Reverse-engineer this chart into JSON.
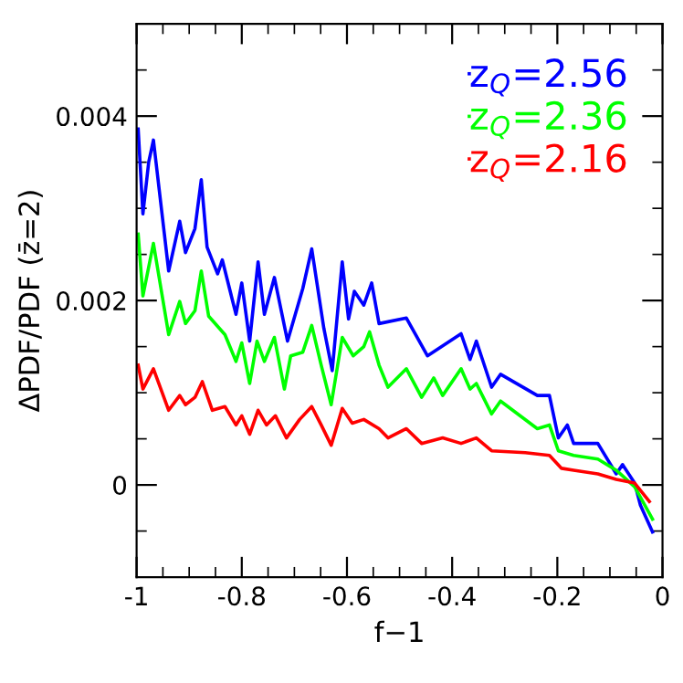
{
  "chart_data": {
    "type": "line",
    "xlabel": "f−1",
    "ylabel": "ΔPDF/PDF (z̄=2)",
    "xlim": [
      -1,
      0
    ],
    "xticks": [
      -1,
      -0.8,
      -0.6,
      -0.4,
      -0.2,
      0
    ],
    "ylim": [
      -0.001,
      0.005
    ],
    "yticks": [
      0,
      0.002,
      0.004
    ],
    "grid": false,
    "legend": "top right",
    "marker": "none",
    "line_style": "solid",
    "series": [
      {
        "name": "z$_{Q}$=2.56",
        "color": "#0000ff",
        "x": [
          -0.997,
          -0.988,
          -0.977,
          -0.968,
          -0.939,
          -0.918,
          -0.907,
          -0.889,
          -0.877,
          -0.866,
          -0.846,
          -0.837,
          -0.811,
          -0.8,
          -0.785,
          -0.769,
          -0.757,
          -0.738,
          -0.713,
          -0.684,
          -0.667,
          -0.644,
          -0.628,
          -0.609,
          -0.597,
          -0.586,
          -0.568,
          -0.553,
          -0.539,
          -0.487,
          -0.447,
          -0.383,
          -0.366,
          -0.354,
          -0.325,
          -0.308,
          -0.238,
          -0.215,
          -0.198,
          -0.181,
          -0.169,
          -0.123,
          -0.088,
          -0.076,
          -0.053,
          -0.042,
          -0.019
        ],
        "values": [
          0.00386,
          0.00294,
          0.0035,
          0.00374,
          0.00232,
          0.00286,
          0.00252,
          0.00278,
          0.00331,
          0.00258,
          0.00229,
          0.00244,
          0.00185,
          0.00219,
          0.00156,
          0.00242,
          0.00185,
          0.00225,
          0.00156,
          0.00213,
          0.00256,
          0.0017,
          0.00124,
          0.00242,
          0.0018,
          0.0021,
          0.00195,
          0.00219,
          0.00175,
          0.00181,
          0.0014,
          0.00164,
          0.00136,
          0.00156,
          0.00106,
          0.0012,
          0.00097,
          0.00097,
          0.00051,
          0.00065,
          0.00045,
          0.00045,
          0.00012,
          0.00022,
          2e-05,
          -0.00022,
          -0.00051
        ]
      },
      {
        "name": "z$_{Q}$=2.36",
        "color": "#00ff00",
        "x": [
          -0.997,
          -0.988,
          -0.968,
          -0.939,
          -0.918,
          -0.907,
          -0.889,
          -0.877,
          -0.863,
          -0.832,
          -0.811,
          -0.8,
          -0.785,
          -0.771,
          -0.757,
          -0.738,
          -0.719,
          -0.707,
          -0.684,
          -0.667,
          -0.649,
          -0.63,
          -0.609,
          -0.588,
          -0.568,
          -0.557,
          -0.539,
          -0.522,
          -0.487,
          -0.458,
          -0.435,
          -0.418,
          -0.383,
          -0.366,
          -0.354,
          -0.325,
          -0.308,
          -0.238,
          -0.215,
          -0.198,
          -0.169,
          -0.123,
          -0.088,
          -0.053,
          -0.019
        ],
        "values": [
          0.00272,
          0.00205,
          0.00262,
          0.00163,
          0.00199,
          0.00175,
          0.00189,
          0.00232,
          0.00183,
          0.00163,
          0.00134,
          0.00154,
          0.0011,
          0.00156,
          0.00134,
          0.0016,
          0.00104,
          0.0014,
          0.00144,
          0.00173,
          0.0013,
          0.00087,
          0.0016,
          0.0014,
          0.0015,
          0.00166,
          0.0013,
          0.00106,
          0.00126,
          0.00095,
          0.00116,
          0.00097,
          0.00126,
          0.00104,
          0.0011,
          0.00077,
          0.00091,
          0.00061,
          0.00065,
          0.00037,
          0.00032,
          0.00028,
          0.00016,
          -2e-05,
          -0.00037
        ]
      },
      {
        "name": "z$_{Q}$=2.16",
        "color": "#ff0000",
        "x": [
          -0.997,
          -0.988,
          -0.968,
          -0.939,
          -0.918,
          -0.907,
          -0.889,
          -0.875,
          -0.856,
          -0.832,
          -0.811,
          -0.8,
          -0.785,
          -0.769,
          -0.753,
          -0.736,
          -0.715,
          -0.69,
          -0.667,
          -0.649,
          -0.63,
          -0.609,
          -0.59,
          -0.568,
          -0.539,
          -0.522,
          -0.487,
          -0.458,
          -0.418,
          -0.383,
          -0.354,
          -0.325,
          -0.261,
          -0.215,
          -0.192,
          -0.169,
          -0.123,
          -0.088,
          -0.053,
          -0.025
        ],
        "values": [
          0.0013,
          0.00104,
          0.00126,
          0.00081,
          0.00097,
          0.00087,
          0.00095,
          0.00112,
          0.00081,
          0.00085,
          0.00065,
          0.00075,
          0.00055,
          0.00081,
          0.00065,
          0.00075,
          0.00051,
          0.00071,
          0.00085,
          0.00065,
          0.00043,
          0.00083,
          0.00067,
          0.00071,
          0.00061,
          0.00051,
          0.00061,
          0.00045,
          0.00051,
          0.00045,
          0.00051,
          0.00037,
          0.00035,
          0.00032,
          0.00018,
          0.00016,
          0.00012,
          6e-05,
          2e-05,
          -0.00018
        ]
      }
    ]
  }
}
